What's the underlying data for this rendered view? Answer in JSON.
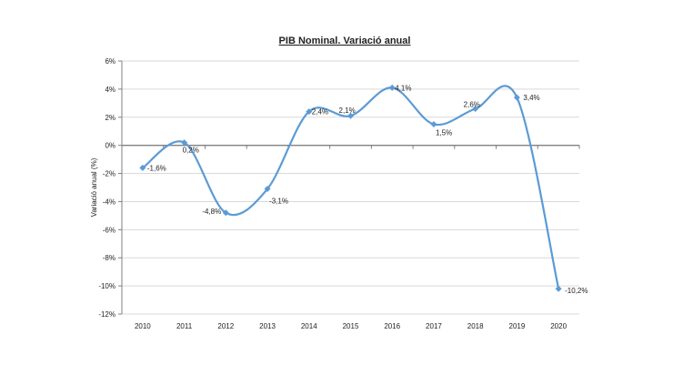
{
  "chart_data": {
    "type": "line",
    "title": "PIB Nominal. Variació anual",
    "xlabel": "",
    "ylabel": "Variació anual (%)",
    "categories": [
      "2010",
      "2011",
      "2012",
      "2013",
      "2014",
      "2015",
      "2016",
      "2017",
      "2018",
      "2019",
      "2020"
    ],
    "series": [
      {
        "values": [
          -1.6,
          0.2,
          -4.8,
          -3.1,
          2.4,
          2.1,
          4.1,
          1.5,
          2.6,
          3.4,
          -10.2
        ],
        "data_labels": [
          "-1,6%",
          "0,2%",
          "-4,8%",
          "-3,1%",
          "2,4%",
          "2,1%",
          "4,1%",
          "1,5%",
          "2,6%",
          "3,4%",
          "-10,2%"
        ]
      }
    ],
    "ylim": [
      -12,
      6
    ],
    "yticks": [
      6,
      4,
      2,
      0,
      -2,
      -4,
      -6,
      -8,
      -10,
      -12
    ],
    "ytick_labels": [
      "6%",
      "4%",
      "2%",
      "0%",
      "-2%",
      "-4%",
      "-6%",
      "-8%",
      "-10%",
      "-12%"
    ],
    "grid": true,
    "smoothed": true,
    "legend": "none",
    "colors": {
      "line": "#5b9bd5",
      "grid": "#d9d9d9",
      "axis": "#808080"
    }
  }
}
